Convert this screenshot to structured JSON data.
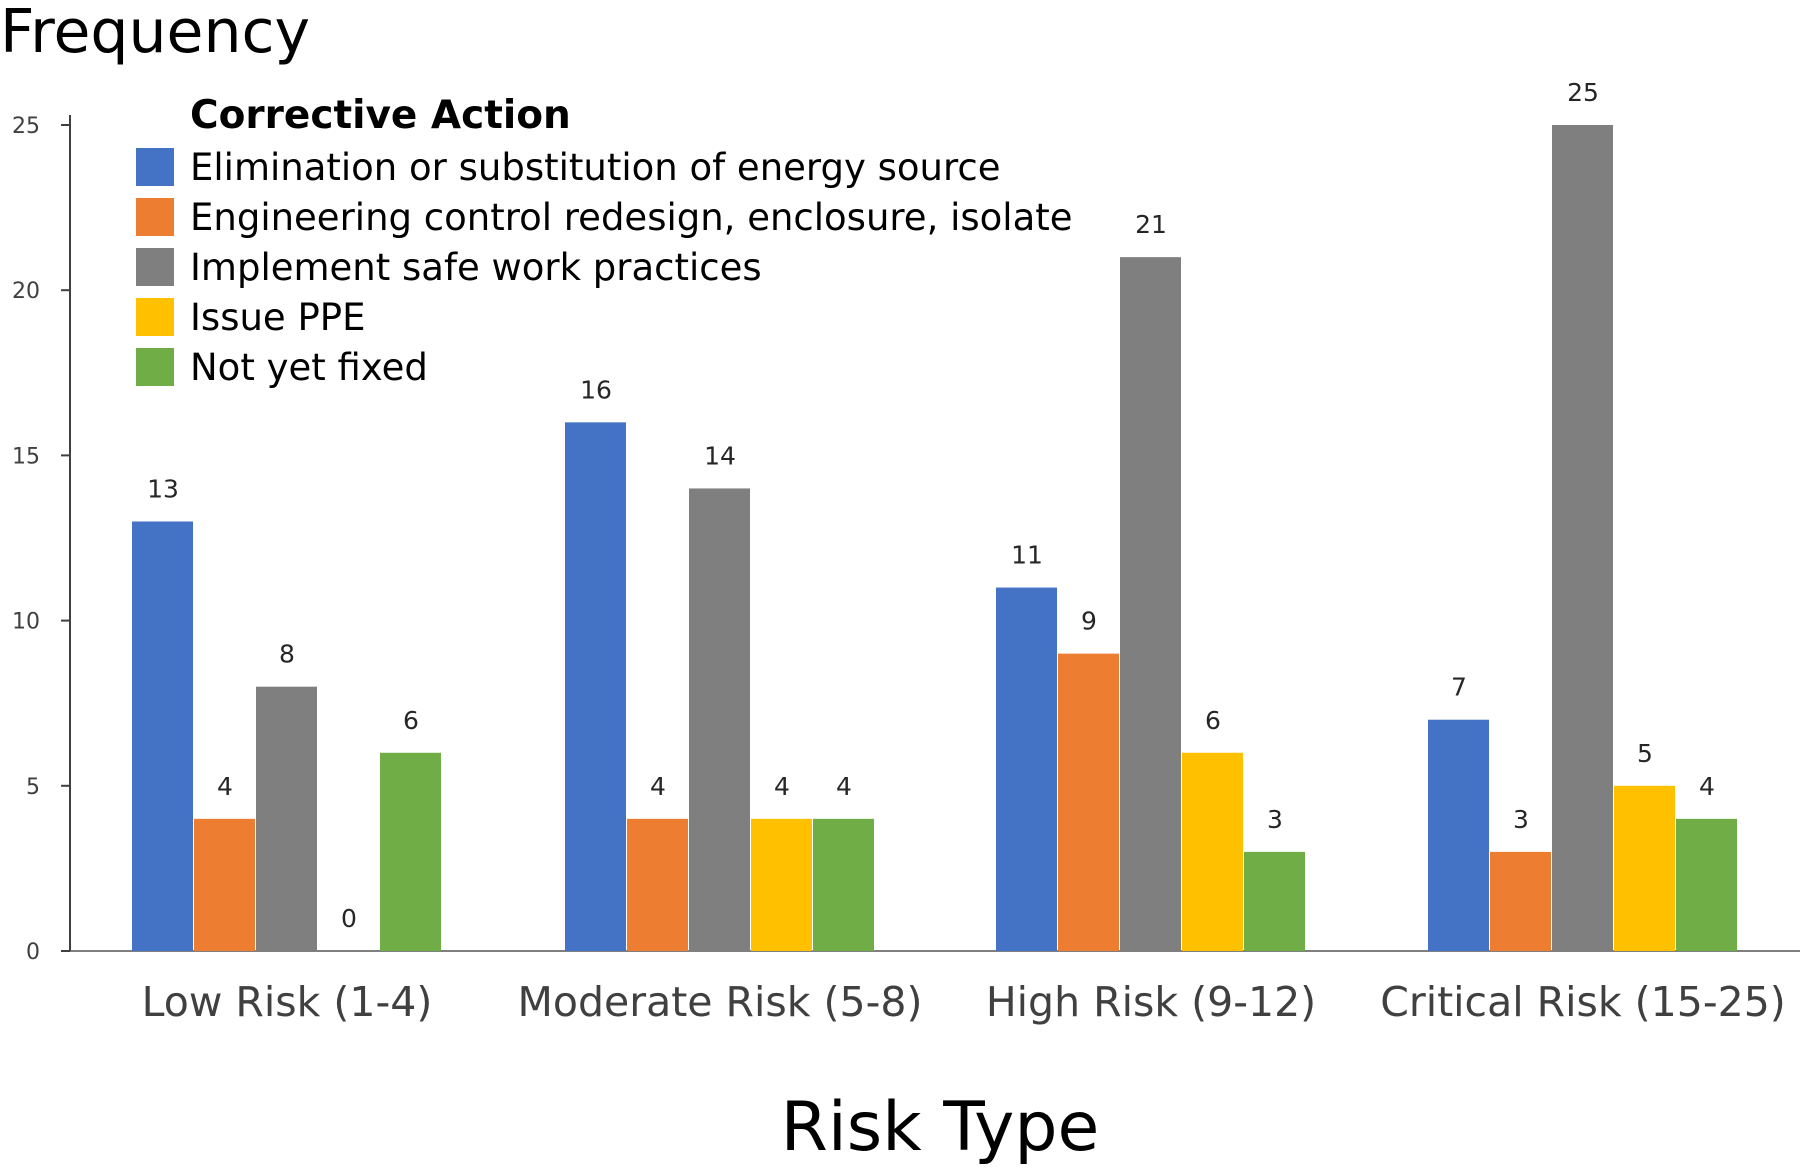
{
  "chart_data": {
    "type": "bar",
    "title": "",
    "ylabel": "Frequency",
    "xlabel": "Risk Type",
    "ylim": [
      0,
      25
    ],
    "yticks": [
      0,
      5,
      10,
      15,
      20,
      25
    ],
    "grid": false,
    "legend_title": "Corrective Action",
    "legend_position": "top-left",
    "categories": [
      "Low Risk (1-4)",
      "Moderate Risk (5-8)",
      "High Risk  (9-12)",
      "Critical Risk (15-25)"
    ],
    "series": [
      {
        "name": "Elimination or substitution of energy source",
        "color": "#4472C4",
        "values": [
          13,
          16,
          11,
          7
        ]
      },
      {
        "name": "Engineering control redesign, enclosure, isolate",
        "color": "#ED7D31",
        "values": [
          4,
          4,
          9,
          3
        ]
      },
      {
        "name": "Implement safe work practices",
        "color": "#7F7F7F",
        "values": [
          8,
          14,
          21,
          25
        ]
      },
      {
        "name": "Issue PPE",
        "color": "#FFC000",
        "values": [
          0,
          4,
          6,
          5
        ]
      },
      {
        "name": "Not yet fixed",
        "color": "#70AD47",
        "values": [
          6,
          4,
          3,
          4
        ]
      }
    ]
  }
}
